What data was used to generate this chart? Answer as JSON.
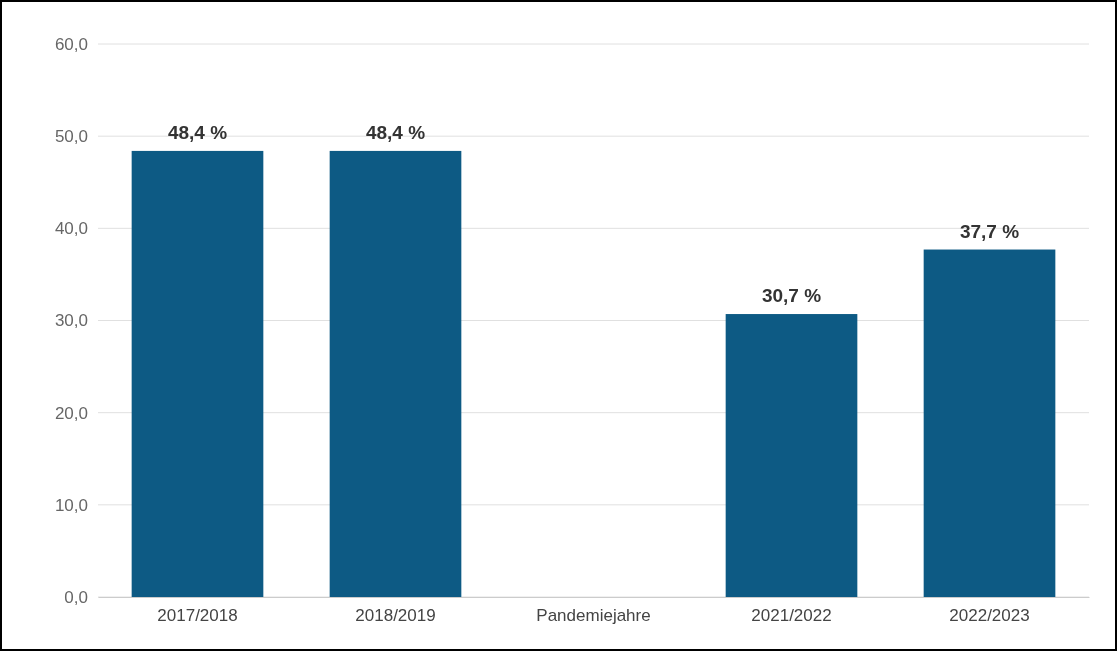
{
  "chart_data": {
    "type": "bar",
    "categories": [
      "2017/2018",
      "2018/2019",
      "Pandemiejahre",
      "2021/2022",
      "2022/2023"
    ],
    "values": [
      48.4,
      48.4,
      null,
      30.7,
      37.7
    ],
    "value_labels": [
      "48,4 %",
      "48,4 %",
      null,
      "30,7 %",
      "37,7 %"
    ],
    "color": "#0d5a84",
    "ylim": [
      0,
      60
    ],
    "yticks": [
      {
        "value": 0,
        "label": "0,0"
      },
      {
        "value": 10,
        "label": "10,0"
      },
      {
        "value": 20,
        "label": "20,0"
      },
      {
        "value": 30,
        "label": "30,0"
      },
      {
        "value": 40,
        "label": "40,0"
      },
      {
        "value": 50,
        "label": "50,0"
      },
      {
        "value": 60,
        "label": "60,0"
      }
    ],
    "grid": "y"
  }
}
